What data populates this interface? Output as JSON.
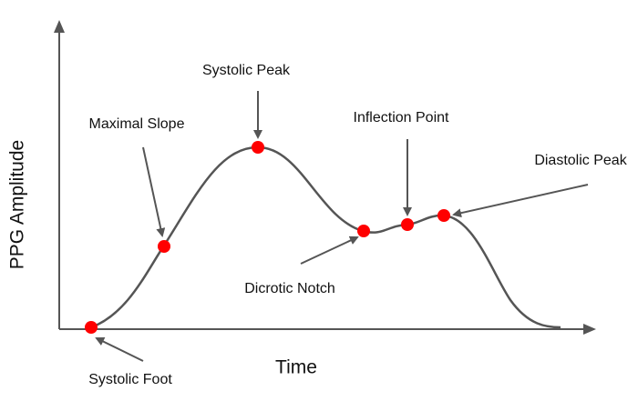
{
  "axes": {
    "x_label": "Time",
    "y_label": "PPG Amplitude"
  },
  "points": [
    {
      "label": "Systolic Foot"
    },
    {
      "label": "Maximal Slope"
    },
    {
      "label": "Systolic Peak"
    },
    {
      "label": "Dicrotic Notch"
    },
    {
      "label": "Inflection Point"
    },
    {
      "label": "Diastolic Peak"
    }
  ]
}
